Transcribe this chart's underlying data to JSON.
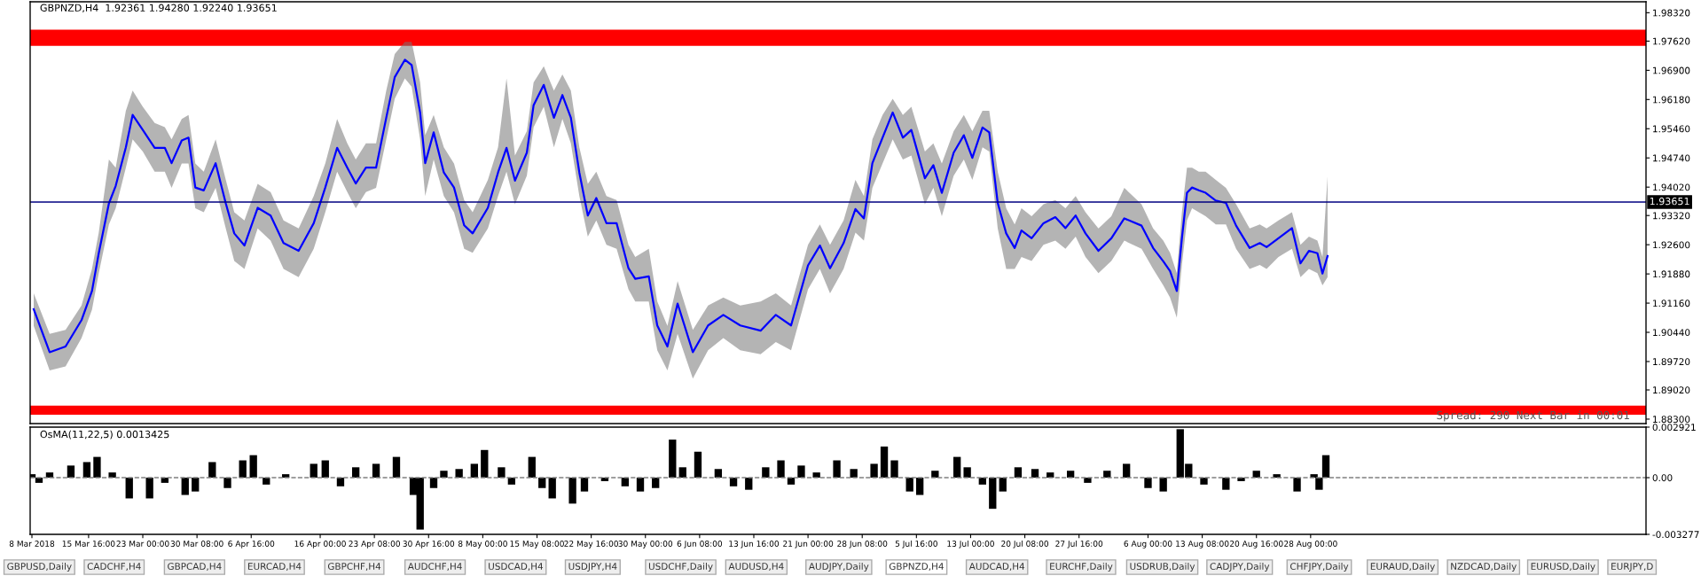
{
  "chart_data": [
    {
      "type": "line",
      "title": "GBPNZD,H4  1.92361 1.94280 1.92240 1.93651",
      "xlim": [
        "2018-03-07T18:15",
        "2018-10-12T09:00"
      ],
      "ylim": [
        1.8819,
        1.9859
      ],
      "tick_labels": "y",
      "yticks": [
        {
          "value": 1.9832,
          "label": "1.98320"
        },
        {
          "value": 1.9762,
          "label": "1.97620"
        },
        {
          "value": 1.969,
          "label": "1.96900"
        },
        {
          "value": 1.9618,
          "label": "1.96180"
        },
        {
          "value": 1.9546,
          "label": "1.95460"
        },
        {
          "value": 1.9474,
          "label": "1.94740"
        },
        {
          "value": 1.9402,
          "label": "1.94020"
        },
        {
          "value": 1.9332,
          "label": "1.93320"
        },
        {
          "value": 1.926,
          "label": "1.92600"
        },
        {
          "value": 1.9188,
          "label": "1.91880"
        },
        {
          "value": 1.9116,
          "label": "1.91160"
        },
        {
          "value": 1.9044,
          "label": "1.90440"
        },
        {
          "value": 1.8972,
          "label": "1.89720"
        },
        {
          "value": 1.8902,
          "label": "1.89020"
        },
        {
          "value": 1.883,
          "label": "1.88300"
        }
      ],
      "series": [
        {
          "color": "#0000ff",
          "x": [
            "2018-03-08T05:45",
            "2018-03-10T09:30",
            "2018-03-12T13:15",
            "2018-03-14T17:00",
            "2018-03-16T03:00",
            "2018-03-17T01:00",
            "2018-03-18T10:00",
            "2018-03-19T08:00",
            "2018-03-20T17:00",
            "2018-03-21T15:00",
            "2018-03-23T00:00",
            "2018-03-24T14:30",
            "2018-03-25T23:30",
            "2018-03-26T21:30",
            "2018-03-28T06:30",
            "2018-03-29T04:30",
            "2018-03-30T02:30",
            "2018-03-31T06:00",
            "2018-04-01T20:30",
            "2018-04-03T05:30",
            "2018-04-04T09:00",
            "2018-04-05T18:00",
            "2018-04-07T13:00",
            "2018-04-09T07:00",
            "2018-04-11T01:00",
            "2018-04-13T02:00",
            "2018-04-15T03:00",
            "2018-04-16T16:30",
            "2018-04-18T07:00",
            "2018-04-19T16:00",
            "2018-04-20T19:30",
            "2018-04-22T04:30",
            "2018-04-23T13:30",
            "2018-04-24T22:30",
            "2018-04-26T02:00",
            "2018-04-27T11:00",
            "2018-04-28T09:00",
            "2018-04-29T12:30",
            "2018-04-30T05:00",
            "2018-05-01T08:30",
            "2018-05-02T17:30",
            "2018-05-04T02:30",
            "2018-05-05T11:30",
            "2018-05-06T15:00",
            "2018-05-08T16:30",
            "2018-05-10T01:30",
            "2018-05-11T05:00",
            "2018-05-12T08:30",
            "2018-05-13T23:00",
            "2018-05-14T21:00",
            "2018-05-16T06:00",
            "2018-05-17T15:00",
            "2018-05-18T18:30",
            "2018-05-19T22:00",
            "2018-05-21T01:30",
            "2018-05-22T05:00",
            "2018-05-23T08:30",
            "2018-05-24T17:30",
            "2018-05-26T02:30",
            "2018-05-27T17:00",
            "2018-05-28T15:00",
            "2018-05-30T11:00",
            "2018-05-31T14:30",
            "2018-06-01T23:30",
            "2018-06-03T08:30",
            "2018-06-05T10:00",
            "2018-06-07T11:30",
            "2018-06-09T13:00",
            "2018-06-11T20:00",
            "2018-06-14T14:00",
            "2018-06-16T15:30",
            "2018-06-18T17:00",
            "2018-06-21T00:00",
            "2018-06-22T14:30",
            "2018-06-23T23:30",
            "2018-06-25T19:30",
            "2018-06-27T10:00",
            "2018-06-28T13:30",
            "2018-06-29T17:00",
            "2018-07-01T02:00",
            "2018-07-02T11:00",
            "2018-07-03T20:00",
            "2018-07-04T23:30",
            "2018-07-06T19:30",
            "2018-07-07T23:00",
            "2018-07-09T02:30",
            "2018-07-10T17:00",
            "2018-07-12T02:00",
            "2018-07-13T05:30",
            "2018-07-14T14:30",
            "2018-07-15T12:30",
            "2018-07-16T16:00",
            "2018-07-17T19:30",
            "2018-07-18T23:00",
            "2018-07-19T21:00",
            "2018-07-21T06:00",
            "2018-07-22T20:30",
            "2018-07-24T11:00",
            "2018-07-25T20:00",
            "2018-07-27T05:00",
            "2018-07-28T13:00",
            "2018-07-30T07:00",
            "2018-08-01T01:00",
            "2018-08-02T19:00",
            "2018-08-05T03:00",
            "2018-08-06T16:30",
            "2018-08-08T01:30",
            "2018-08-08T23:30",
            "2018-08-09T21:30",
            "2018-08-10T14:00",
            "2018-08-11T06:30",
            "2018-08-11T23:00",
            "2018-08-12T21:00",
            "2018-08-13T19:00",
            "2018-08-15T04:00",
            "2018-08-16T13:00",
            "2018-08-17T22:00",
            "2018-08-19T18:00",
            "2018-08-21T03:00",
            "2018-08-22T01:00",
            "2018-08-23T15:30",
            "2018-08-25T11:30",
            "2018-08-26T15:00",
            "2018-08-27T18:30",
            "2018-08-28T22:00",
            "2018-08-29T14:30",
            "2018-08-30T07:00"
          ],
          "values": [
            1.9101,
            1.8995,
            1.9009,
            1.9074,
            1.9146,
            1.9239,
            1.9362,
            1.9405,
            1.95,
            1.958,
            1.9543,
            1.9499,
            1.9499,
            1.9461,
            1.9517,
            1.9524,
            1.9401,
            1.9394,
            1.9461,
            1.9362,
            1.9288,
            1.9258,
            1.9351,
            1.9332,
            1.9264,
            1.9245,
            1.9313,
            1.9401,
            1.9499,
            1.945,
            1.9411,
            1.945,
            1.945,
            1.9573,
            1.9673,
            1.9716,
            1.9703,
            1.9586,
            1.9461,
            1.9537,
            1.9438,
            1.9401,
            1.9308,
            1.9288,
            1.9351,
            1.9438,
            1.9499,
            1.9418,
            1.9487,
            1.9604,
            1.9654,
            1.9573,
            1.9629,
            1.9573,
            1.9438,
            1.9332,
            1.9375,
            1.9313,
            1.9313,
            1.9202,
            1.9176,
            1.9182,
            1.9061,
            1.9009,
            1.9115,
            1.8995,
            1.9061,
            1.9087,
            1.9061,
            1.9048,
            1.9087,
            1.9061,
            1.9209,
            1.9258,
            1.9202,
            1.9264,
            1.9348,
            1.9325,
            1.9461,
            1.9524,
            1.9586,
            1.9524,
            1.9543,
            1.9424,
            1.9456,
            1.9388,
            1.9487,
            1.953,
            1.9474,
            1.9549,
            1.9537,
            1.9363,
            1.9288,
            1.9252,
            1.9295,
            1.9276,
            1.9313,
            1.9328,
            1.9301,
            1.9332,
            1.9288,
            1.9245,
            1.9276,
            1.9325,
            1.9307,
            1.9252,
            1.9219,
            1.9195,
            1.9146,
            1.9276,
            1.9388,
            1.9401,
            1.9394,
            1.9388,
            1.9369,
            1.9363,
            1.9307,
            1.9252,
            1.9264,
            1.9254,
            1.9276,
            1.9301,
            1.9214,
            1.9245,
            1.9239,
            1.9189,
            1.9232
          ],
          "upper": [
            1.914,
            1.904,
            1.905,
            1.911,
            1.92,
            1.929,
            1.947,
            1.945,
            1.959,
            1.964,
            1.96,
            1.956,
            1.955,
            1.952,
            1.957,
            1.958,
            1.946,
            1.944,
            1.952,
            1.942,
            1.934,
            1.932,
            1.941,
            1.939,
            1.932,
            1.93,
            1.938,
            1.946,
            1.957,
            1.951,
            1.947,
            1.951,
            1.951,
            1.964,
            1.973,
            1.976,
            1.976,
            1.966,
            1.953,
            1.958,
            1.95,
            1.946,
            1.937,
            1.934,
            1.942,
            1.95,
            1.967,
            1.948,
            1.954,
            1.966,
            1.97,
            1.964,
            1.968,
            1.964,
            1.95,
            1.941,
            1.944,
            1.938,
            1.937,
            1.926,
            1.923,
            1.925,
            1.912,
            1.906,
            1.917,
            1.905,
            1.911,
            1.913,
            1.911,
            1.912,
            1.914,
            1.911,
            1.926,
            1.931,
            1.926,
            1.932,
            1.942,
            1.938,
            1.952,
            1.958,
            1.962,
            1.958,
            1.96,
            1.949,
            1.951,
            1.946,
            1.954,
            1.958,
            1.954,
            1.959,
            1.959,
            1.944,
            1.935,
            1.931,
            1.935,
            1.933,
            1.936,
            1.937,
            1.935,
            1.938,
            1.934,
            1.93,
            1.933,
            1.94,
            1.936,
            1.93,
            1.927,
            1.924,
            1.919,
            1.934,
            1.945,
            1.945,
            1.944,
            1.944,
            1.942,
            1.94,
            1.936,
            1.93,
            1.931,
            1.93,
            1.932,
            1.934,
            1.926,
            1.928,
            1.927,
            1.923,
            1.9428
          ],
          "lower": [
            1.906,
            1.895,
            1.896,
            1.903,
            1.91,
            1.919,
            1.931,
            1.935,
            1.945,
            1.952,
            1.949,
            1.944,
            1.944,
            1.94,
            1.946,
            1.946,
            1.935,
            1.934,
            1.94,
            1.93,
            1.922,
            1.92,
            1.93,
            1.927,
            1.92,
            1.918,
            1.925,
            1.934,
            1.944,
            1.939,
            1.935,
            1.939,
            1.94,
            1.952,
            1.962,
            1.967,
            1.965,
            1.952,
            1.938,
            1.947,
            1.938,
            1.934,
            1.925,
            1.924,
            1.93,
            1.938,
            1.944,
            1.936,
            1.943,
            1.955,
            1.96,
            1.95,
            1.957,
            1.951,
            1.938,
            1.928,
            1.932,
            1.926,
            1.925,
            1.915,
            1.912,
            1.912,
            1.9,
            1.895,
            1.904,
            1.893,
            1.9,
            1.903,
            1.9,
            1.899,
            1.902,
            1.9,
            1.915,
            1.92,
            1.914,
            1.92,
            1.929,
            1.927,
            1.94,
            1.946,
            1.952,
            1.947,
            1.948,
            1.936,
            1.94,
            1.933,
            1.943,
            1.947,
            1.942,
            1.95,
            1.949,
            1.93,
            1.92,
            1.92,
            1.923,
            1.922,
            1.926,
            1.927,
            1.925,
            1.928,
            1.923,
            1.919,
            1.922,
            1.927,
            1.925,
            1.92,
            1.916,
            1.913,
            1.908,
            1.921,
            1.932,
            1.935,
            1.934,
            1.933,
            1.931,
            1.931,
            1.925,
            1.92,
            1.921,
            1.92,
            1.923,
            1.925,
            1.918,
            1.92,
            1.919,
            1.916,
            1.918
          ]
        }
      ],
      "ref_lines": [
        {
          "axis": "y",
          "value": 1.93651,
          "label": "1.93651",
          "color": "#000080"
        }
      ],
      "bands": [
        {
          "axis": "y",
          "from": 1.97504,
          "to": 1.97904,
          "color": "#ff0000"
        },
        {
          "axis": "y",
          "from": 1.8841,
          "to": 1.8863,
          "color": "#ff0000"
        }
      ],
      "annotations": [
        "Spread: 290 Next Bar in 00:01"
      ]
    },
    {
      "type": "bar",
      "title": "OsMA(11,22,5) 0.0013425",
      "color": "#000000",
      "xlim": [
        "2018-03-07T18:15",
        "2018-10-12T09:00"
      ],
      "ylim": [
        -0.003277,
        0.002921
      ],
      "yticks": [
        0.002921,
        {
          "value": 0,
          "label": "0.00"
        },
        -0.003277
      ],
      "xticks": [
        {
          "value": "2018-03-08T00:00",
          "label": "8 Mar 2018"
        },
        {
          "value": "2018-03-15T16:00",
          "label": "15 Mar 16:00"
        },
        {
          "value": "2018-03-23T00:00",
          "label": "23 Mar 00:00"
        },
        {
          "value": "2018-03-30T08:00",
          "label": "30 Mar 08:00"
        },
        {
          "value": "2018-04-06T16:00",
          "label": "6 Apr 16:00"
        },
        {
          "value": "2018-04-16T00:00",
          "label": "16 Apr 00:00"
        },
        {
          "value": "2018-04-23T08:00",
          "label": "23 Apr 08:00"
        },
        {
          "value": "2018-04-30T16:00",
          "label": "30 Apr 16:00"
        },
        {
          "value": "2018-05-08T00:00",
          "label": "8 May 00:00"
        },
        {
          "value": "2018-05-15T08:00",
          "label": "15 May 08:00"
        },
        {
          "value": "2018-05-22T16:00",
          "label": "22 May 16:00"
        },
        {
          "value": "2018-05-30T00:00",
          "label": "30 May 00:00"
        },
        {
          "value": "2018-06-06T08:00",
          "label": "6 Jun 08:00"
        },
        {
          "value": "2018-06-13T16:00",
          "label": "13 Jun 16:00"
        },
        {
          "value": "2018-06-21T00:00",
          "label": "21 Jun 00:00"
        },
        {
          "value": "2018-06-28T08:00",
          "label": "28 Jun 08:00"
        },
        {
          "value": "2018-07-05T16:00",
          "label": "5 Jul 16:00"
        },
        {
          "value": "2018-07-13T00:00",
          "label": "13 Jul 00:00"
        },
        {
          "value": "2018-07-20T08:00",
          "label": "20 Jul 08:00"
        },
        {
          "value": "2018-07-27T16:00",
          "label": "27 Jul 16:00"
        },
        {
          "value": "2018-08-06T00:00",
          "label": "6 Aug 00:00"
        },
        {
          "value": "2018-08-13T08:00",
          "label": "13 Aug 08:00"
        },
        {
          "value": "2018-08-20T16:00",
          "label": "20 Aug 16:00"
        },
        {
          "value": "2018-08-28T00:00",
          "label": "28 Aug 00:00"
        }
      ],
      "x": [
        "2018-03-08T00:00",
        "2018-03-08T23:00",
        "2018-03-10T09:30",
        "2018-03-13T06:30",
        "2018-03-15T10:15",
        "2018-03-16T19:30",
        "2018-03-18T21:00",
        "2018-03-21T04:00",
        "2018-03-23T22:00",
        "2018-03-25T23:30",
        "2018-03-28T17:30",
        "2018-03-30T02:30",
        "2018-04-01T09:30",
        "2018-04-03T11:00",
        "2018-04-05T12:30",
        "2018-04-06T23:00",
        "2018-04-08T17:00",
        "2018-04-11T08:00",
        "2018-04-15T03:00",
        "2018-04-16T16:30",
        "2018-04-18T18:00",
        "2018-04-20T19:30",
        "2018-04-23T13:30",
        "2018-04-26T07:30",
        "2018-04-28T14:30",
        "2018-04-29T12:30",
        "2018-05-01T08:30",
        "2018-05-02T17:30",
        "2018-05-04T19:00",
        "2018-05-06T20:30",
        "2018-05-08T05:30",
        "2018-05-10T12:30",
        "2018-05-11T21:30",
        "2018-05-14T15:30",
        "2018-05-16T00:30",
        "2018-05-17T09:30",
        "2018-05-20T03:30",
        "2018-05-21T18:00",
        "2018-05-24T12:00",
        "2018-05-27T06:00",
        "2018-05-29T07:30",
        "2018-05-31T09:00",
        "2018-06-02T16:00",
        "2018-06-04T01:00",
        "2018-06-06T02:30",
        "2018-06-08T20:30",
        "2018-06-10T22:00",
        "2018-06-12T23:30",
        "2018-06-15T06:30",
        "2018-06-17T08:00",
        "2018-06-18T17:00",
        "2018-06-20T02:00",
        "2018-06-22T03:30",
        "2018-06-24T21:30",
        "2018-06-27T04:30",
        "2018-06-29T22:30",
        "2018-07-01T07:30",
        "2018-07-02T16:30",
        "2018-07-04T18:00",
        "2018-07-06T03:00",
        "2018-07-08T04:30",
        "2018-07-11T04:00",
        "2018-07-12T13:00",
        "2018-07-14T14:30",
        "2018-07-15T23:30",
        "2018-07-17T08:30",
        "2018-07-19T10:00",
        "2018-07-21T17:00",
        "2018-07-23T18:30",
        "2018-07-26T12:30",
        "2018-07-28T20:00",
        "2018-07-31T11:00",
        "2018-08-03T02:00",
        "2018-08-06T00:00",
        "2018-08-08T01:30",
        "2018-08-10T08:30",
        "2018-08-11T12:00",
        "2018-08-13T13:30",
        "2018-08-16T13:00",
        "2018-08-18T14:30",
        "2018-08-20T16:00",
        "2018-08-23T10:00",
        "2018-08-26T04:00",
        "2018-08-28T11:00",
        "2018-08-29T03:30",
        "2018-08-30T01:30"
      ],
      "values": [
        0.0002,
        -0.0003,
        0.0003,
        0.0007,
        0.0009,
        0.0012,
        0.0003,
        -0.0012,
        -0.0012,
        -0.0003,
        -0.001,
        -0.0008,
        0.0009,
        -0.0006,
        0.001,
        0.0013,
        -0.0004,
        0.0002,
        0.0008,
        0.001,
        -0.0005,
        0.0006,
        0.0008,
        0.0012,
        -0.001,
        -0.003,
        -0.0006,
        0.0004,
        0.0005,
        0.0008,
        0.0016,
        0.0006,
        -0.0004,
        0.0012,
        -0.0006,
        -0.0012,
        -0.0015,
        -0.0008,
        -0.0002,
        -0.0005,
        -0.0008,
        -0.0006,
        0.0022,
        0.0006,
        0.0015,
        0.0005,
        -0.0005,
        -0.0007,
        0.0006,
        0.001,
        -0.0004,
        0.0007,
        0.0003,
        0.001,
        0.0005,
        0.0008,
        0.0018,
        0.001,
        -0.0008,
        -0.001,
        0.0004,
        0.0012,
        0.0006,
        -0.0004,
        -0.0018,
        -0.0008,
        0.0006,
        0.0005,
        0.0003,
        0.0004,
        -0.0003,
        0.0004,
        0.0008,
        -0.0006,
        -0.0008,
        0.0028,
        0.0008,
        -0.0004,
        -0.0007,
        -0.0002,
        0.0004,
        0.0002,
        -0.0008,
        0.0002,
        -0.0007,
        0.0013
      ],
      "ref_lines": [
        {
          "axis": "y",
          "value": 0,
          "color": "#808080",
          "line_style": "dashed"
        }
      ],
      "annotations": [
        "GBPUSD,Daily",
        "CADCHF,H4",
        "GBPCAD,H4",
        "EURCAD,H4",
        "GBPCHF,H4",
        "AUDCHF,H4",
        "USDCAD,H4",
        "USDJPY,H4",
        "USDCHF,Daily",
        "AUDUSD,H4",
        "AUDJPY,Daily",
        "GBPNZD,H4",
        "AUDCAD,H4",
        "EURCHF,Daily",
        "USDRUB,Daily",
        "CADJPY,Daily",
        "CHFJPY,Daily",
        "EURAUD,Daily",
        "NZDCAD,Daily",
        "EURUSD,Daily",
        "EURJPY,D"
      ]
    }
  ]
}
